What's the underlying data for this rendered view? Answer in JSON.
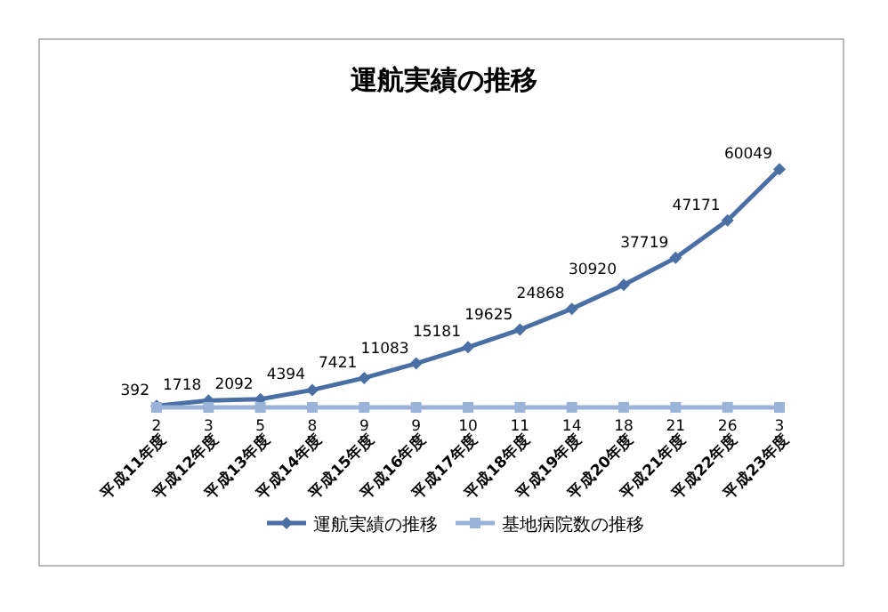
{
  "chart_data": {
    "type": "line",
    "title": "運航実績の推移",
    "categories": [
      "平成11年度",
      "平成12年度",
      "平成13年度",
      "平成14年度",
      "平成15年度",
      "平成16年度",
      "平成17年度",
      "平成18年度",
      "平成19年度",
      "平成20年度",
      "平成21年度",
      "平成22年度",
      "平成23年度"
    ],
    "series": [
      {
        "name": "運航実績の推移",
        "color": "#4a6fa5",
        "marker": "diamond",
        "values": [
          392,
          1718,
          2092,
          4394,
          7421,
          11083,
          15181,
          19625,
          24868,
          30920,
          37719,
          47171,
          60049
        ]
      },
      {
        "name": "基地病院数の推移",
        "color": "#9bb3d9",
        "marker": "square",
        "values": [
          2,
          3,
          5,
          8,
          9,
          9,
          10,
          11,
          14,
          18,
          21,
          26,
          3
        ]
      }
    ],
    "tick_labels": "x",
    "data_labels": true,
    "grid": false,
    "legend": "bottom"
  }
}
